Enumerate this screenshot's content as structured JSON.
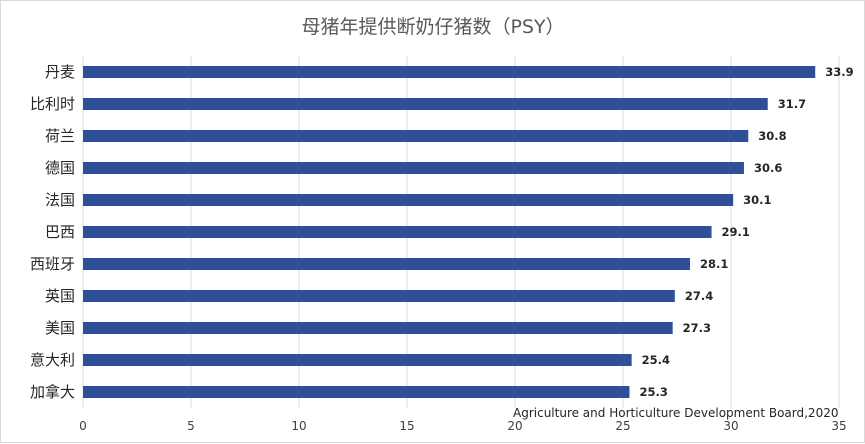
{
  "chart_data": {
    "type": "bar",
    "orientation": "horizontal",
    "title": "母猪年提供断奶仔猪数（PSY）",
    "categories": [
      "丹麦",
      "比利时",
      "荷兰",
      "德国",
      "法国",
      "巴西",
      "西班牙",
      "英国",
      "美国",
      "意大利",
      "加拿大"
    ],
    "values": [
      33.9,
      31.7,
      30.8,
      30.6,
      30.1,
      29.1,
      28.1,
      27.4,
      27.3,
      25.4,
      25.3
    ],
    "value_labels": [
      "33.9",
      "31.7",
      "30.8",
      "30.6",
      "30.1",
      "29.1",
      "28.1",
      "27.4",
      "27.3",
      "25.4",
      "25.3"
    ],
    "xlim": [
      0,
      35
    ],
    "x_ticks": [
      0,
      5,
      10,
      15,
      20,
      25,
      30,
      35
    ],
    "x_tick_labels": [
      "0",
      "5",
      "10",
      "15",
      "20",
      "25",
      "30",
      "35"
    ],
    "grid": true,
    "legend": "none",
    "annotation": "Agriculture and Horticulture Development Board,2020",
    "colors": {
      "bar": "#2f4f99",
      "grid": "#d9d9d9"
    }
  }
}
